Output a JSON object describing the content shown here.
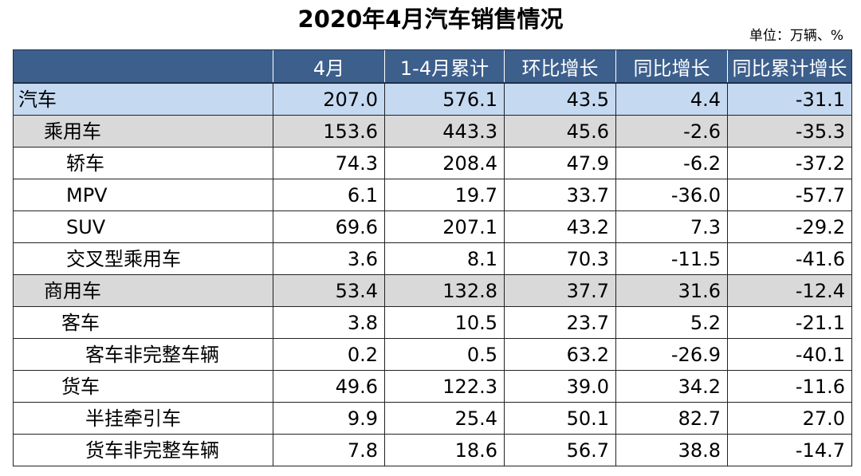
{
  "title": "2020年4月汽车销售情况",
  "unit": "单位：万辆、%",
  "table": {
    "headers": [
      "",
      "4月",
      "1-4月累计",
      "环比增长",
      "同比增长",
      "同比累计增长"
    ],
    "rows": [
      {
        "level": 0,
        "name": "汽车",
        "values": [
          "207.0",
          "576.1",
          "43.5",
          "4.4",
          "-31.1"
        ]
      },
      {
        "level": 1,
        "name": "乘用车",
        "values": [
          "153.6",
          "443.3",
          "45.6",
          "-2.6",
          "-35.3"
        ]
      },
      {
        "level": 2,
        "name": "轿车",
        "values": [
          "74.3",
          "208.4",
          "47.9",
          "-6.2",
          "-37.2"
        ]
      },
      {
        "level": 2,
        "name": "MPV",
        "values": [
          "6.1",
          "19.7",
          "33.7",
          "-36.0",
          "-57.7"
        ]
      },
      {
        "level": 2,
        "name": "SUV",
        "values": [
          "69.6",
          "207.1",
          "43.2",
          "7.3",
          "-29.2"
        ]
      },
      {
        "level": 2,
        "name": "交叉型乘用车",
        "values": [
          "3.6",
          "8.1",
          "70.3",
          "-11.5",
          "-41.6"
        ]
      },
      {
        "level": 1,
        "name": "商用车",
        "values": [
          "53.4",
          "132.8",
          "37.7",
          "31.6",
          "-12.4"
        ]
      },
      {
        "level": 4,
        "name": "客车",
        "values": [
          "3.8",
          "10.5",
          "23.7",
          "5.2",
          "-21.1"
        ]
      },
      {
        "level": 3,
        "name": "客车非完整车辆",
        "values": [
          "0.2",
          "0.5",
          "63.2",
          "-26.9",
          "-40.1"
        ]
      },
      {
        "level": 4,
        "name": "货车",
        "values": [
          "49.6",
          "122.3",
          "39.0",
          "34.2",
          "-11.6"
        ]
      },
      {
        "level": 3,
        "name": "半挂牵引车",
        "values": [
          "9.9",
          "25.4",
          "50.1",
          "82.7",
          "27.0"
        ]
      },
      {
        "level": 3,
        "name": "货车非完整车辆",
        "values": [
          "7.8",
          "18.6",
          "56.7",
          "38.8",
          "-14.7"
        ]
      }
    ]
  }
}
